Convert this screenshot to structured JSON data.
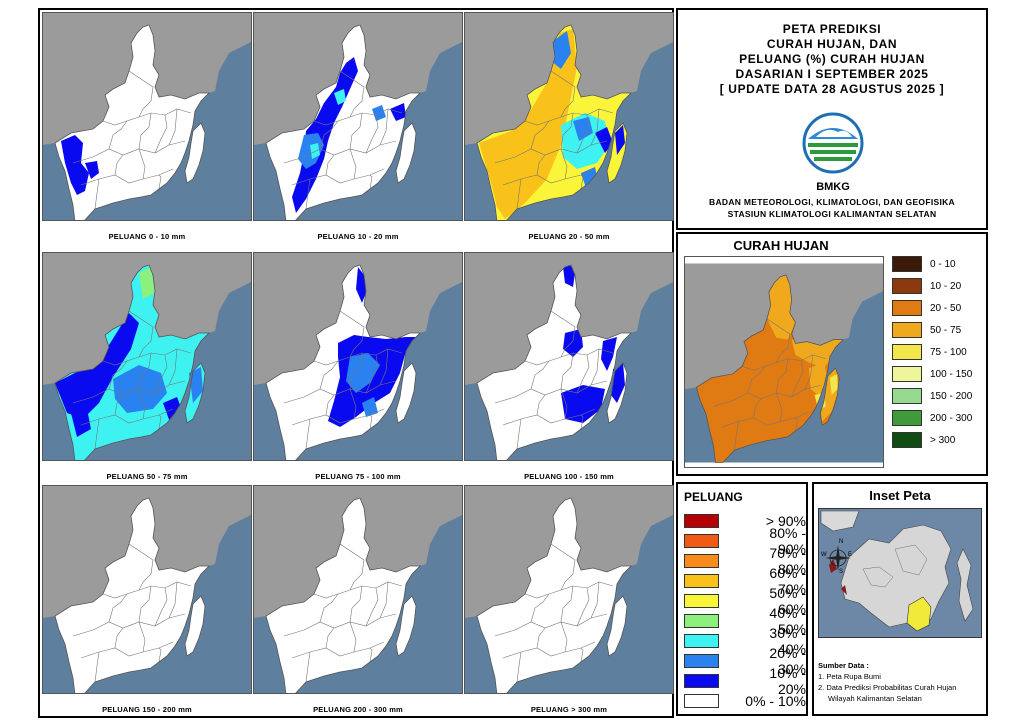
{
  "panels": [
    {
      "caption": "PELUANG 0 - 10 mm",
      "kind": "p1"
    },
    {
      "caption": "PELUANG 10 - 20 mm",
      "kind": "p2"
    },
    {
      "caption": "PELUANG 20 - 50 mm",
      "kind": "p3"
    },
    {
      "caption": "PELUANG 50 - 75 mm",
      "kind": "p4"
    },
    {
      "caption": "PELUANG 75 - 100 mm",
      "kind": "p5"
    },
    {
      "caption": "PELUANG 100 - 150 mm",
      "kind": "p6"
    },
    {
      "caption": "PELUANG 150 - 200 mm",
      "kind": "blank"
    },
    {
      "caption": "PELUANG 200 - 300 mm",
      "kind": "blank"
    },
    {
      "caption": "PELUANG > 300 mm",
      "kind": "blank"
    }
  ],
  "title": {
    "line1": "PETA PREDIKSI",
    "line2": "CURAH HUJAN, DAN",
    "line3": "PELUANG (%) CURAH HUJAN",
    "line4": "DASARIAN I SEPTEMBER 2025",
    "line5": "[ UPDATE DATA 28 AGUSTUS 2025 ]",
    "logo_text": "BMKG",
    "agency1": "BADAN METEOROLOGI, KLIMATOLOGI, DAN GEOFISIKA",
    "agency2": "STASIUN KLIMATOLOGI KALIMANTAN SELATAN"
  },
  "curah_hujan": {
    "heading": "CURAH HUJAN",
    "legend": [
      {
        "label": "0 - 10",
        "color": "#3b1a0a"
      },
      {
        "label": "10 - 20",
        "color": "#8b3a0e"
      },
      {
        "label": "20 - 50",
        "color": "#e07a12"
      },
      {
        "label": "50 - 75",
        "color": "#f0a91c"
      },
      {
        "label": "75 - 100",
        "color": "#f2e64a"
      },
      {
        "label": "100 - 150",
        "color": "#eef59a"
      },
      {
        "label": "150 - 200",
        "color": "#97d98f"
      },
      {
        "label": "200 - 300",
        "color": "#3f9a3a"
      },
      {
        "label": "> 300",
        "color": "#0f4d12"
      }
    ]
  },
  "peluang": {
    "heading": "PELUANG",
    "legend": [
      {
        "label": "> 90%",
        "color": "#b40000"
      },
      {
        "label": "80% - 90%",
        "color": "#f05a14"
      },
      {
        "label": "70% - 80%",
        "color": "#f98a1c"
      },
      {
        "label": "60% - 70%",
        "color": "#f8c21a"
      },
      {
        "label": "50% - 60%",
        "color": "#fbf53a"
      },
      {
        "label": "40% - 50%",
        "color": "#8ef07c"
      },
      {
        "label": "30% - 40%",
        "color": "#3ff2f2"
      },
      {
        "label": "20% - 30%",
        "color": "#2a82f0"
      },
      {
        "label": "10% - 20%",
        "color": "#0a0af0"
      },
      {
        "label": "0% - 10%",
        "color": "#ffffff"
      }
    ]
  },
  "inset": {
    "heading": "Inset Peta",
    "compass": {
      "n": "N",
      "s": "S",
      "e": "E",
      "w": "W"
    },
    "source_heading": "Sumber Data :",
    "source1": "1. Peta Rupa Bumi",
    "source2": "2. Data Prediksi Probabilitas Curah Hujan",
    "source3": "Wilayah Kalimantan Selatan"
  }
}
